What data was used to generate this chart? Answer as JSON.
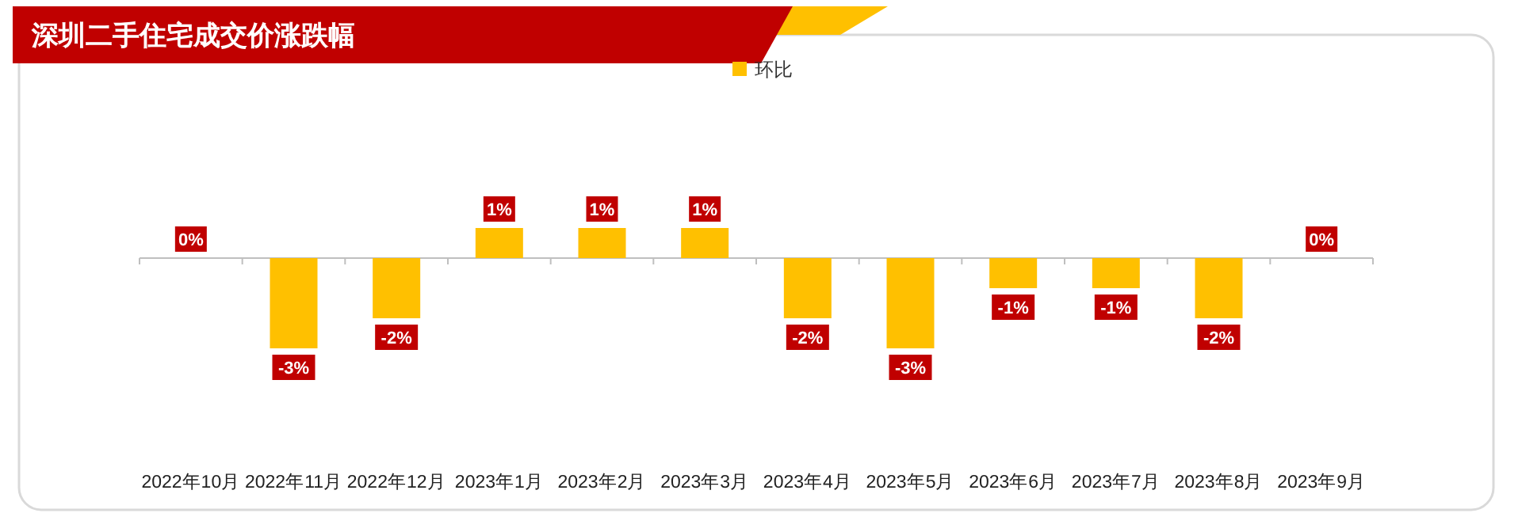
{
  "chart_data": {
    "type": "bar",
    "title": "深圳二手住宅成交价涨跌幅",
    "categories": [
      "2022年10月",
      "2022年11月",
      "2022年12月",
      "2023年1月",
      "2023年2月",
      "2023年3月",
      "2023年4月",
      "2023年5月",
      "2023年6月",
      "2023年7月",
      "2023年8月",
      "2023年9月"
    ],
    "series": [
      {
        "name": "环比",
        "color": "#ffc000",
        "values": [
          0,
          -3,
          -2,
          1,
          1,
          1,
          -2,
          -3,
          -1,
          -1,
          -2,
          0
        ],
        "value_labels": [
          "0%",
          "-3%",
          "-2%",
          "1%",
          "1%",
          "1%",
          "-2%",
          "-3%",
          "-1%",
          "-1%",
          "-2%",
          "0%"
        ]
      }
    ],
    "legend": "top",
    "grid": false
  }
}
